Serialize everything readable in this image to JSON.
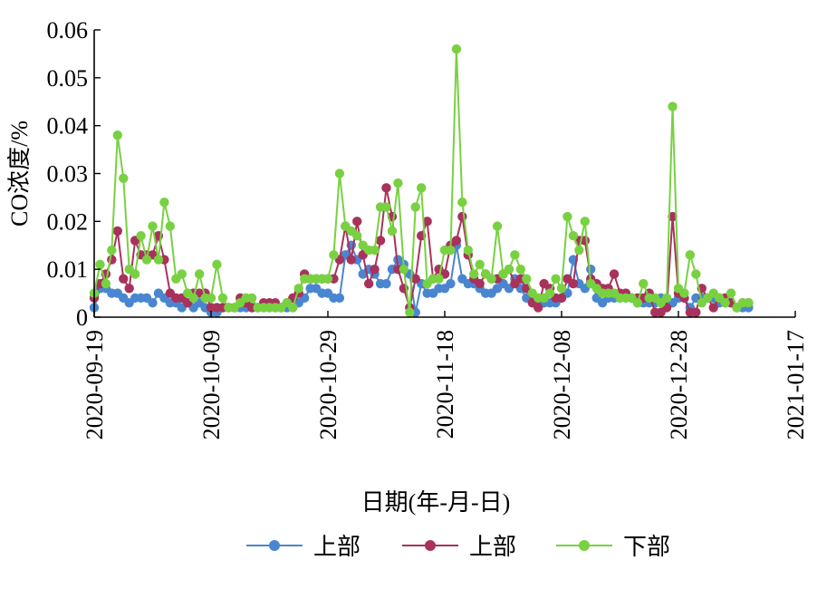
{
  "chart_data": {
    "type": "line",
    "title": "",
    "xlabel": "日期(年-月-日)",
    "ylabel": "CO浓度/%",
    "xlim": [
      "2020-09-19",
      "2021-01-17"
    ],
    "ylim": [
      0,
      0.06
    ],
    "xticks": [
      "2020-09-19",
      "2020-10-09",
      "2020-10-29",
      "2020-11-18",
      "2020-12-08",
      "2020-12-28",
      "2021-01-17"
    ],
    "yticks": [
      "0",
      "0.01",
      "0.02",
      "0.03",
      "0.04",
      "0.05",
      "0.06"
    ],
    "yticks_values": [
      0,
      0.01,
      0.02,
      0.03,
      0.04,
      0.05,
      0.06
    ],
    "grid": false,
    "legend_position": "bottom",
    "dates": [
      "2020-09-19",
      "2020-09-20",
      "2020-09-21",
      "2020-09-22",
      "2020-09-23",
      "2020-09-24",
      "2020-09-25",
      "2020-09-26",
      "2020-09-27",
      "2020-09-28",
      "2020-09-29",
      "2020-09-30",
      "2020-10-01",
      "2020-10-02",
      "2020-10-03",
      "2020-10-04",
      "2020-10-05",
      "2020-10-06",
      "2020-10-07",
      "2020-10-08",
      "2020-10-09",
      "2020-10-10",
      "2020-10-11",
      "2020-10-12",
      "2020-10-13",
      "2020-10-14",
      "2020-10-15",
      "2020-10-16",
      "2020-10-17",
      "2020-10-18",
      "2020-10-19",
      "2020-10-20",
      "2020-10-21",
      "2020-10-22",
      "2020-10-23",
      "2020-10-24",
      "2020-10-25",
      "2020-10-26",
      "2020-10-27",
      "2020-10-28",
      "2020-10-29",
      "2020-10-30",
      "2020-10-31",
      "2020-11-01",
      "2020-11-02",
      "2020-11-03",
      "2020-11-04",
      "2020-11-05",
      "2020-11-06",
      "2020-11-07",
      "2020-11-08",
      "2020-11-09",
      "2020-11-10",
      "2020-11-11",
      "2020-11-12",
      "2020-11-13",
      "2020-11-14",
      "2020-11-15",
      "2020-11-16",
      "2020-11-17",
      "2020-11-18",
      "2020-11-19",
      "2020-11-20",
      "2020-11-21",
      "2020-11-22",
      "2020-11-23",
      "2020-11-24",
      "2020-11-25",
      "2020-11-26",
      "2020-11-27",
      "2020-11-28",
      "2020-11-29",
      "2020-11-30",
      "2020-12-01",
      "2020-12-02",
      "2020-12-03",
      "2020-12-04",
      "2020-12-05",
      "2020-12-06",
      "2020-12-07",
      "2020-12-08",
      "2020-12-09",
      "2020-12-10",
      "2020-12-11",
      "2020-12-12",
      "2020-12-13",
      "2020-12-14",
      "2020-12-15",
      "2020-12-16",
      "2020-12-17",
      "2020-12-18",
      "2020-12-19",
      "2020-12-20",
      "2020-12-21",
      "2020-12-22",
      "2020-12-23",
      "2020-12-24",
      "2020-12-25",
      "2020-12-26",
      "2020-12-27",
      "2020-12-28",
      "2020-12-29",
      "2020-12-30",
      "2020-12-31",
      "2021-01-01",
      "2021-01-02",
      "2021-01-03",
      "2021-01-04",
      "2021-01-05",
      "2021-01-06",
      "2021-01-07",
      "2021-01-08",
      "2021-01-09"
    ],
    "series": [
      {
        "name": "上部",
        "color": "#4a86d0",
        "values": [
          0.002,
          0.006,
          0.006,
          0.005,
          0.005,
          0.004,
          0.003,
          0.004,
          0.004,
          0.004,
          0.003,
          0.005,
          0.004,
          0.003,
          0.003,
          0.002,
          0.003,
          0.002,
          0.003,
          0.002,
          0.001,
          0.001,
          0.002,
          0.002,
          0.002,
          0.002,
          0.002,
          0.002,
          0.002,
          0.002,
          0.002,
          0.002,
          0.002,
          0.002,
          0.002,
          0.003,
          0.004,
          0.006,
          0.006,
          0.005,
          0.005,
          0.004,
          0.004,
          0.013,
          0.015,
          0.012,
          0.009,
          0.01,
          0.009,
          0.007,
          0.007,
          0.01,
          0.012,
          0.011,
          0.009,
          0.001,
          0.007,
          0.005,
          0.005,
          0.006,
          0.006,
          0.007,
          0.015,
          0.008,
          0.007,
          0.007,
          0.006,
          0.005,
          0.005,
          0.006,
          0.007,
          0.006,
          0.008,
          0.006,
          0.004,
          0.004,
          0.003,
          0.003,
          0.003,
          0.003,
          0.004,
          0.005,
          0.012,
          0.007,
          0.006,
          0.01,
          0.004,
          0.003,
          0.004,
          0.004,
          0.004,
          0.004,
          0.004,
          0.003,
          0.003,
          0.003,
          0.003,
          0.004,
          0.003,
          0.003,
          0.004,
          0.004,
          0.002,
          0.004,
          0.004,
          0.004,
          0.004,
          0.003,
          0.003,
          0.003,
          0.002,
          0.002,
          0.002
        ]
      },
      {
        "name": "上部",
        "color": "#a8325c",
        "values": [
          0.004,
          0.007,
          0.009,
          0.012,
          0.018,
          0.008,
          0.006,
          0.016,
          0.013,
          0.013,
          0.013,
          0.017,
          0.012,
          0.005,
          0.004,
          0.004,
          0.003,
          0.005,
          0.005,
          0.005,
          0.002,
          0.002,
          0.002,
          0.002,
          0.002,
          0.004,
          0.003,
          0.002,
          0.002,
          0.003,
          0.003,
          0.003,
          0.002,
          0.003,
          0.004,
          0.005,
          0.009,
          0.008,
          0.008,
          0.008,
          0.008,
          0.008,
          0.012,
          0.019,
          0.012,
          0.02,
          0.013,
          0.007,
          0.01,
          0.016,
          0.027,
          0.021,
          0.01,
          0.006,
          0.002,
          0.008,
          0.017,
          0.02,
          0.008,
          0.01,
          0.009,
          0.015,
          0.016,
          0.021,
          0.013,
          0.008,
          0.007,
          0.009,
          0.008,
          0.008,
          0.009,
          0.01,
          0.007,
          0.008,
          0.006,
          0.003,
          0.002,
          0.007,
          0.006,
          0.004,
          0.004,
          0.008,
          0.007,
          0.016,
          0.016,
          0.008,
          0.007,
          0.006,
          0.006,
          0.009,
          0.005,
          0.005,
          0.004,
          0.004,
          0.004,
          0.005,
          0.001,
          0.001,
          0.002,
          0.021,
          0.005,
          0.004,
          0.001,
          0.001,
          0.006,
          0.004,
          0.002,
          0.004,
          0.004,
          0.003,
          0.002,
          0.003,
          0.003
        ]
      },
      {
        "name": "下部",
        "color": "#78d141",
        "values": [
          0.005,
          0.011,
          0.007,
          0.014,
          0.038,
          0.029,
          0.01,
          0.009,
          0.017,
          0.012,
          0.019,
          0.012,
          0.024,
          0.019,
          0.008,
          0.009,
          0.005,
          0.004,
          0.009,
          0.004,
          0.004,
          0.011,
          0.004,
          0.002,
          0.002,
          0.003,
          0.004,
          0.004,
          0.002,
          0.002,
          0.002,
          0.002,
          0.002,
          0.003,
          0.002,
          0.006,
          0.008,
          0.008,
          0.008,
          0.008,
          0.008,
          0.013,
          0.03,
          0.019,
          0.018,
          0.017,
          0.015,
          0.014,
          0.014,
          0.023,
          0.023,
          0.018,
          0.028,
          0.01,
          0.001,
          0.023,
          0.027,
          0.007,
          0.008,
          0.008,
          0.014,
          0.014,
          0.056,
          0.024,
          0.014,
          0.009,
          0.011,
          0.009,
          0.008,
          0.019,
          0.009,
          0.01,
          0.013,
          0.01,
          0.008,
          0.005,
          0.004,
          0.004,
          0.005,
          0.008,
          0.006,
          0.021,
          0.017,
          0.014,
          0.02,
          0.007,
          0.006,
          0.005,
          0.005,
          0.005,
          0.004,
          0.004,
          0.004,
          0.003,
          0.007,
          0.004,
          0.004,
          0.003,
          0.004,
          0.044,
          0.006,
          0.005,
          0.013,
          0.009,
          0.003,
          0.004,
          0.005,
          0.004,
          0.003,
          0.005,
          0.002,
          0.003,
          0.003
        ]
      }
    ]
  }
}
